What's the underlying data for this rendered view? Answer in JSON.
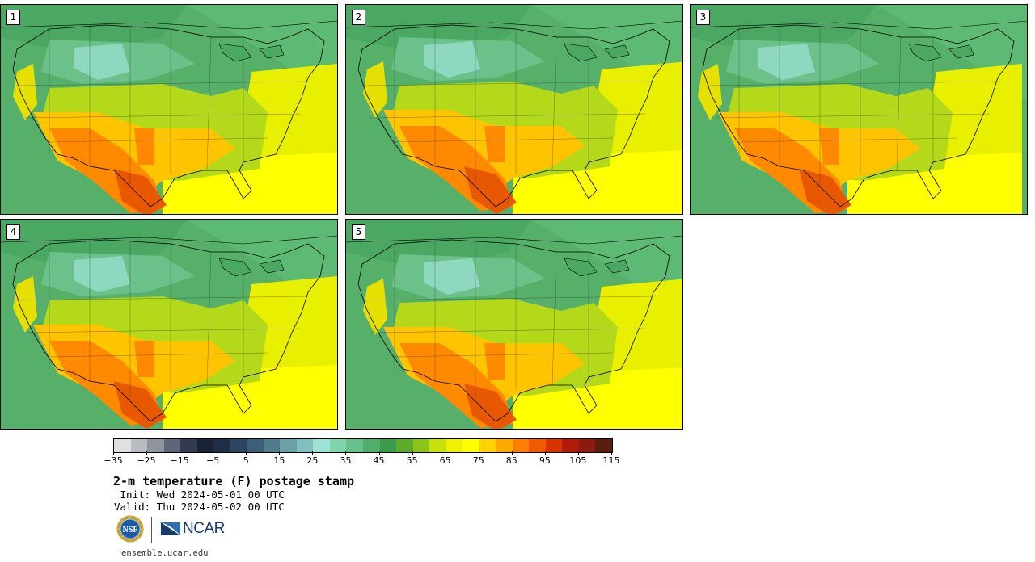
{
  "panels": [
    {
      "label": "1"
    },
    {
      "label": "2"
    },
    {
      "label": "3"
    },
    {
      "label": "4"
    },
    {
      "label": "5"
    }
  ],
  "colorbar": {
    "colors": [
      "#e0e0e0",
      "#b8bcc2",
      "#8f95a0",
      "#5f6678",
      "#323b52",
      "#1a2236",
      "#1e2e46",
      "#2c4560",
      "#3c5f77",
      "#4f7d8c",
      "#6ba0a7",
      "#80c0bf",
      "#9ee3d6",
      "#7fd3ad",
      "#66c28a",
      "#4fae69",
      "#3c9a48",
      "#5aac2a",
      "#8ec41a",
      "#c8e00c",
      "#f0f000",
      "#ffff00",
      "#ffd200",
      "#ffaa00",
      "#ff7f00",
      "#f05a00",
      "#d83400",
      "#b01a08",
      "#8c1a0e",
      "#5a1e10"
    ],
    "tick_labels": [
      "−35",
      "−25",
      "−15",
      "−5",
      "5",
      "15",
      "25",
      "35",
      "45",
      "55",
      "65",
      "75",
      "85",
      "95",
      "105",
      "115"
    ]
  },
  "title": "2-m temperature (F) postage stamp",
  "init": " Init: Wed 2024-05-01 00 UTC",
  "valid": "Valid: Thu 2024-05-02 00 UTC",
  "logos": {
    "nsf": "NSF",
    "ncar": "NCAR"
  },
  "website": "ensemble.ucar.edu"
}
